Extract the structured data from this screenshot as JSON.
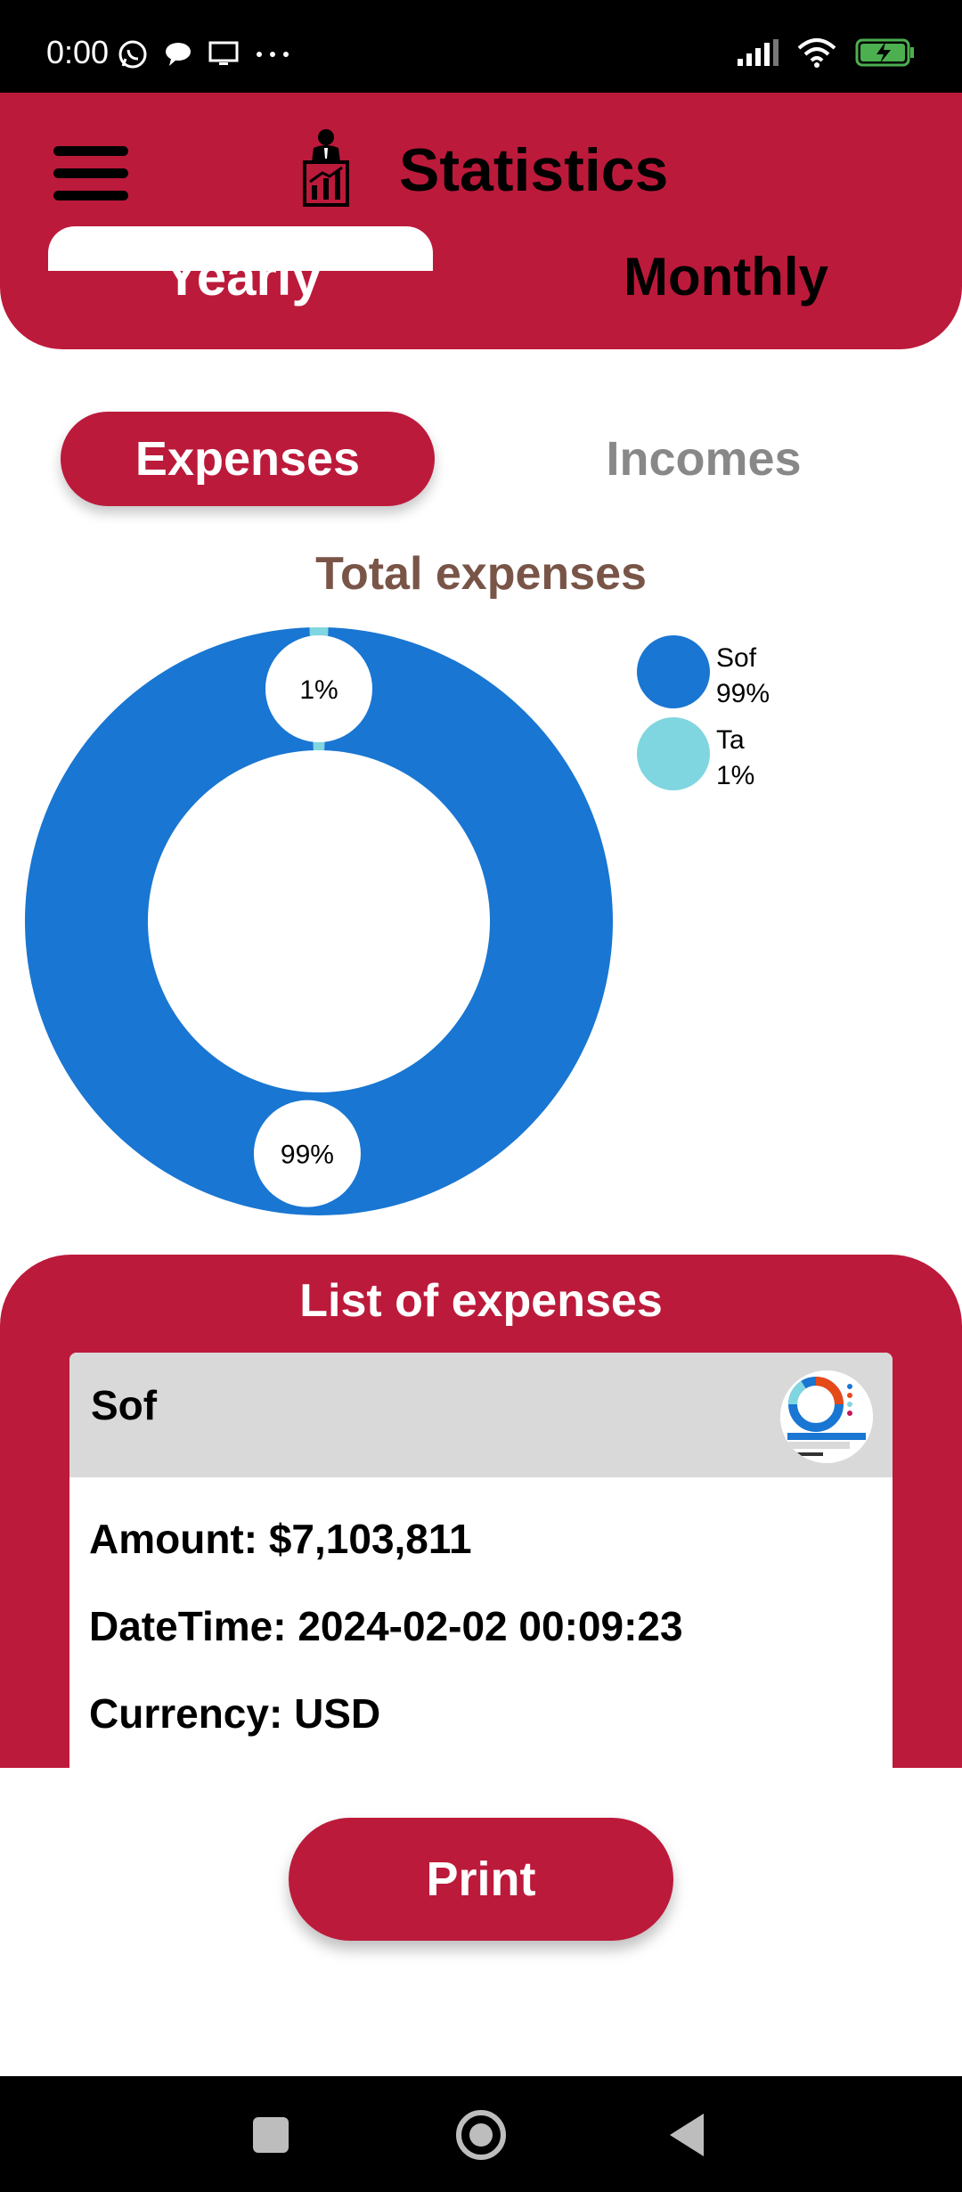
{
  "status_bar": {
    "time": "0:00",
    "left_icons": [
      "whatsapp-icon",
      "chat-bubble-icon",
      "screen-icon",
      "more-dots-icon"
    ],
    "right_icons": [
      "signal-icon",
      "wifi-icon",
      "battery-charging-icon"
    ]
  },
  "header": {
    "title": "Statistics",
    "menu_icon": "hamburger-icon",
    "logo_icon": "person-chart-icon",
    "tabs": [
      {
        "label": "Yearly",
        "selected": true
      },
      {
        "label": "Monthly",
        "selected": false
      }
    ]
  },
  "segment": {
    "expenses_label": "Expenses",
    "incomes_label": "Incomes",
    "selected": "Expenses"
  },
  "colors": {
    "brand": "#bc1a3b",
    "slice_sof": "#1976d2",
    "slice_ta": "#80d6e0",
    "chart_title": "#795548"
  },
  "chart_data": {
    "type": "pie",
    "title": "Total expenses",
    "donut": true,
    "categories": [
      "Sof",
      "Ta"
    ],
    "values": [
      99,
      1
    ],
    "data_labels": [
      "99%",
      "1%"
    ],
    "legend": {
      "placement": "top-right",
      "entries": [
        {
          "name": "Sof",
          "value": "99%"
        },
        {
          "name": "Ta",
          "value": "1%"
        }
      ]
    }
  },
  "list": {
    "title": "List of expenses",
    "items": [
      {
        "name": "Sof",
        "amount": "Amount: $7,103,811",
        "datetime": "DateTime: 2024-02-02 00:09:23",
        "currency": "Currency: USD",
        "thumbnail_icon": "chart-thumbnail-icon"
      }
    ]
  },
  "print_label": "Print",
  "nav_bar": {
    "icons": [
      "recents-icon",
      "home-icon",
      "back-icon"
    ]
  }
}
